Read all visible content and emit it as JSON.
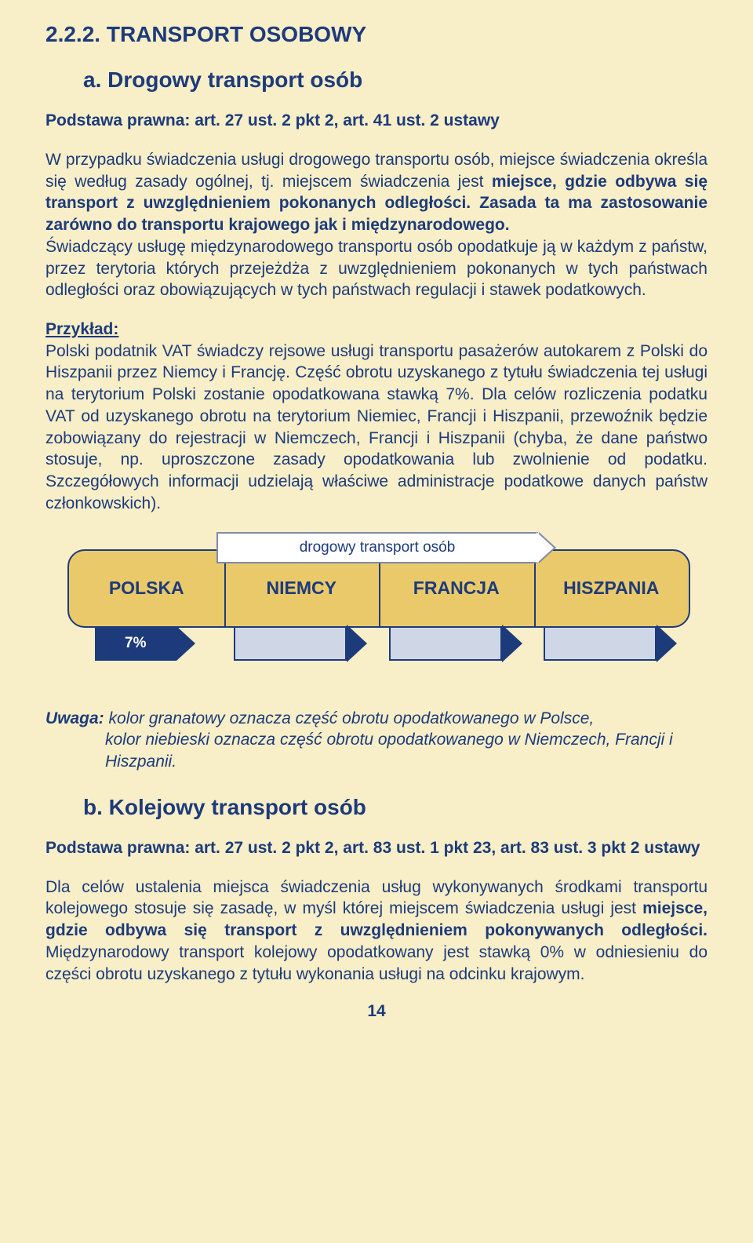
{
  "section_number": "2.2.2. TRANSPORT OSOBOWY",
  "subsection_a": "a. Drogowy transport osób",
  "legal_basis_a": "Podstawa prawna: art. 27 ust. 2 pkt 2, art. 41 ust. 2 ustawy",
  "para1_pre": "W przypadku świadczenia usługi drogowego transportu osób, miejsce świadczenia określa się według zasady ogólnej, tj. miejscem świadczenia jest ",
  "para1_bold": "miejsce, gdzie odbywa się transport z uwzględnieniem pokonanych odległości. Zasada ta ma zastosowanie zarówno do transportu krajowego jak i międzynarodowego.",
  "para1_post": "Świadczący usługę międzynarodowego transportu osób opodatkuje ją w każdym z państw, przez terytoria których przejeżdża z uwzględnieniem pokonanych w tych państwach odległości oraz obowiązujących w tych państwach regulacji i stawek podatkowych.",
  "example_label": "Przykład:",
  "example_text": "Polski podatnik VAT świadczy rejsowe usługi transportu pasażerów autokarem z Polski do Hiszpanii przez Niemcy i Francję. Część obrotu uzyskanego z tytułu świadczenia tej usługi na terytorium Polski zostanie opodatkowana stawką 7%. Dla celów rozliczenia podatku VAT od uzyskanego obrotu na terytorium Niemiec, Francji i Hiszpanii, przewoźnik będzie zobowiązany do rejestracji w Niemczech, Francji i Hiszpanii (chyba, że dane państwo stosuje, np. uproszczone zasady opodatkowania lub zwolnienie od podatku. Szczegółowych informacji udzielają właściwe administracje podatkowe danych państw członkowskich).",
  "diagram": {
    "top_label": "drogowy transport osób",
    "countries": [
      "POLSKA",
      "NIEMCY",
      "FRANCJA",
      "HISZPANIA"
    ],
    "rate_label": "7%",
    "colors": {
      "page_bg": "#f8efc8",
      "bar_bg": "#e9c969",
      "border": "#1d3a7a",
      "dark_arrow": "#1d3a7a",
      "light_arrow": "#cfd6e6",
      "white": "#ffffff"
    }
  },
  "note_label": "Uwaga: ",
  "note_line1": "kolor granatowy oznacza część obrotu opodatkowanego w Polsce,",
  "note_line2": "kolor niebieski oznacza część obrotu opodatkowanego w Niemczech, Francji i Hiszpanii.",
  "subsection_b": "b. Kolejowy transport osób",
  "legal_basis_b": "Podstawa prawna: art. 27 ust. 2 pkt 2, art. 83 ust. 1 pkt 23, art. 83 ust. 3 pkt 2 ustawy",
  "para_b_pre": "Dla celów ustalenia miejsca świadczenia usług wykonywanych środkami transportu kolejowego stosuje się zasadę, w myśl której miejscem świadczenia usługi jest ",
  "para_b_bold": "miejsce, gdzie odbywa się transport z uwzględnieniem pokonywanych odległości.",
  "para_b_post": " Międzynarodowy transport kolejowy opodatkowany jest stawką 0% w odniesieniu do części obrotu uzyskanego z tytułu wykonania usługi na odcinku krajowym.",
  "page_number": "14"
}
